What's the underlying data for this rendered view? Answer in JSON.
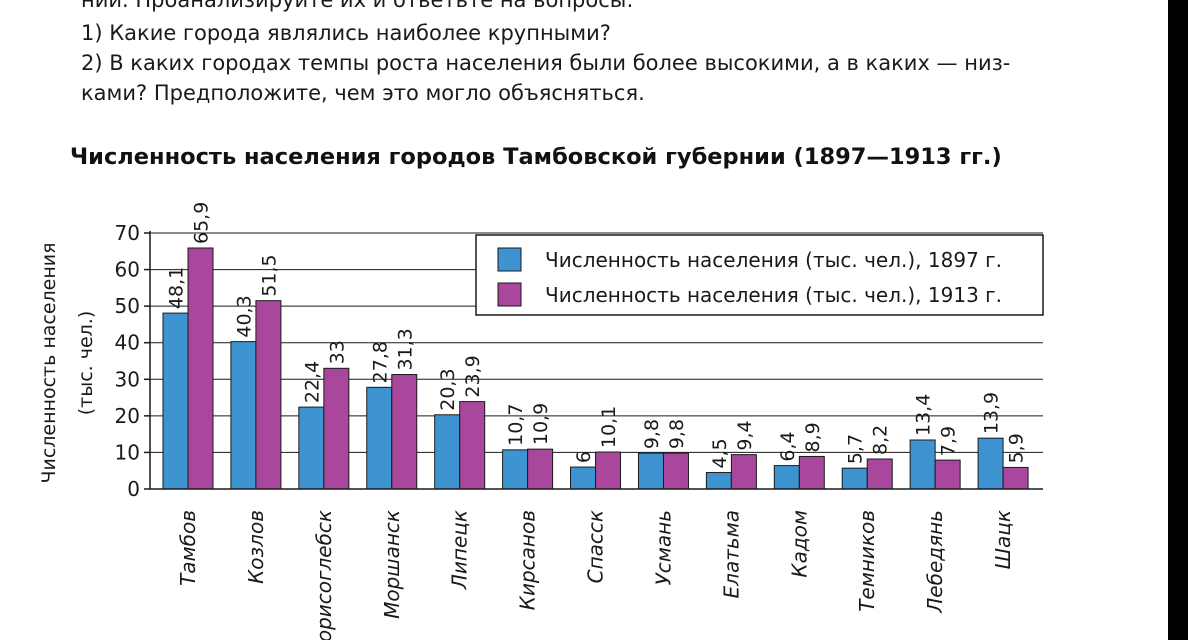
{
  "task_text": {
    "lines": [
      "ний. Проанализируйте их и ответьте на вопросы:",
      "1) Какие города являлись наиболее крупными?",
      "2) В каких городах темпы роста населения были более высокими, а в каких — низ-",
      "ками? Предположите, чем это могло объясняться."
    ]
  },
  "chart_data": {
    "type": "bar",
    "title": "Численность населения городов Тамбовской губернии (1897—1913 гг.)",
    "ylabel": "Численность населения (тыс. чел.)",
    "ylabel_lines": [
      "Численность населения",
      "(тыс. чел.)"
    ],
    "xlabel": "",
    "ylim": [
      0,
      70
    ],
    "yticks": [
      0,
      10,
      20,
      30,
      40,
      50,
      60,
      70
    ],
    "grid": true,
    "legend_position": "top-right",
    "categories": [
      "Тамбов",
      "Козлов",
      "Борисоглебск",
      "Моршанск",
      "Липецк",
      "Кирсанов",
      "Спасск",
      "Усмань",
      "Елатьма",
      "Кадом",
      "Темников",
      "Лебедянь",
      "Шацк"
    ],
    "series": [
      {
        "name": "Численность населения (тыс. чел.), 1897 г.",
        "color": "#3e94d1",
        "values": [
          48.1,
          40.3,
          22.4,
          27.8,
          20.3,
          10.7,
          6,
          9.8,
          4.5,
          6.4,
          5.7,
          13.4,
          13.9
        ],
        "labels": [
          "48,1",
          "40,3",
          "22,4",
          "27,8",
          "20,3",
          "10,7",
          "6",
          "9,8",
          "4,5",
          "6,4",
          "5,7",
          "13,4",
          "13,9"
        ]
      },
      {
        "name": "Численность населения (тыс. чел.), 1913 г.",
        "color": "#a8479b",
        "values": [
          65.9,
          51.5,
          33,
          31.3,
          23.9,
          10.9,
          10.1,
          9.8,
          9.4,
          8.9,
          8.2,
          7.9,
          5.9
        ],
        "labels": [
          "65,9",
          "51,5",
          "33",
          "31,3",
          "23,9",
          "10,9",
          "10,1",
          "9,8",
          "9,4",
          "8,9",
          "8,2",
          "7,9",
          "5,9"
        ]
      }
    ]
  }
}
